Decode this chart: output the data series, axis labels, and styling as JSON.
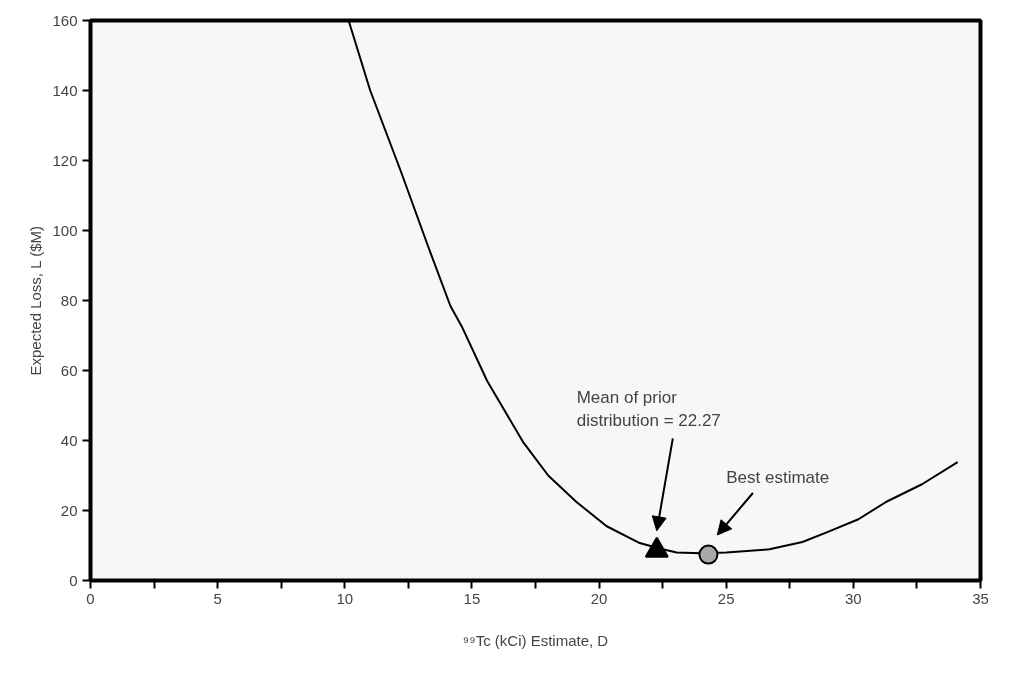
{
  "chart_data": {
    "type": "line",
    "xlabel": "⁹⁹Tc (kCi) Estimate, D",
    "ylabel": "Expected Loss, L ($M)",
    "xlim": [
      0,
      35
    ],
    "ylim": [
      0,
      160
    ],
    "xticks": [
      0,
      {
        "value": 2.5,
        "label": null
      },
      5,
      {
        "value": 7.5,
        "label": null
      },
      10,
      {
        "value": 12.5,
        "label": null
      },
      15,
      {
        "value": 17.5,
        "label": null
      },
      20,
      {
        "value": 22.5,
        "label": null
      },
      25,
      {
        "value": 27.5,
        "label": null
      },
      30,
      {
        "value": 32.5,
        "label": null
      },
      35
    ],
    "yticks": [
      0,
      20,
      40,
      60,
      80,
      100,
      120,
      140,
      160
    ],
    "grid": false,
    "series": [
      {
        "color": "#000000",
        "line_style": "solid",
        "x": [
          10.15,
          11,
          12.2,
          13.3,
          14.15,
          14.6,
          15.6,
          17.0,
          18.0,
          19.1,
          20.3,
          21.6,
          22.3,
          23.05,
          24.0,
          25.0,
          26.7,
          28.0,
          29.0,
          30.2,
          31.3,
          32.7,
          34.1
        ],
        "values": [
          160,
          140,
          117,
          95,
          78.5,
          72.6,
          57,
          39.7,
          30,
          22.5,
          15.5,
          10.7,
          9.3,
          8.0,
          7.8,
          8.0,
          8.9,
          11,
          13.9,
          17.5,
          22.5,
          27.5,
          33.8
        ]
      },
      {
        "type": "scatter",
        "color": "#000000",
        "marker": "triangle",
        "x": [
          22.27
        ],
        "values": [
          8.6
        ]
      },
      {
        "type": "scatter",
        "color": "#a8a8a8",
        "marker": "circle",
        "x": [
          24.3
        ],
        "values": [
          7.4
        ]
      }
    ],
    "annotations": [
      "Mean of prior\ndistribution = 22.27",
      "Best estimate"
    ]
  }
}
